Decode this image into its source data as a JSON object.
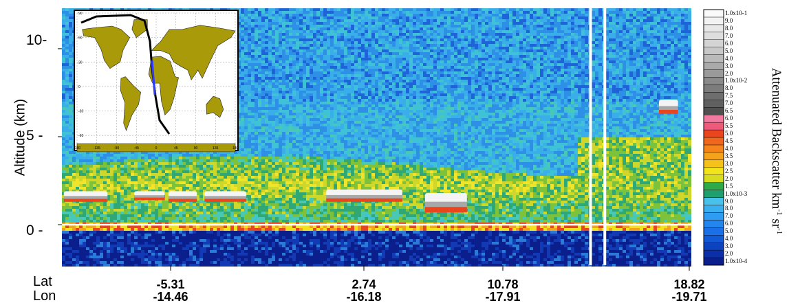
{
  "chart_data": {
    "type": "heatmap",
    "ylabel": "Altitude (km)",
    "ylim": [
      -2.3,
      12.3
    ],
    "y_ticks": [
      "10-",
      "5 -",
      "0 -"
    ],
    "y_tick_values": [
      10,
      5,
      0
    ],
    "x_row_labels": [
      "Lat",
      "Lon"
    ],
    "x_ticks": [
      {
        "lat": "-5.31",
        "lon": "-14.46"
      },
      {
        "lat": "2.74",
        "lon": "-16.18"
      },
      {
        "lat": "10.78",
        "lon": "-17.91"
      },
      {
        "lat": "18.82",
        "lon": "-19.71"
      }
    ],
    "lat_range": [
      -12.1,
      21.0
    ],
    "colorbar": {
      "title": "Attenuated Backscatter km",
      "title_sup1": "-1",
      "title_mid": " sr",
      "title_sup2": "-1",
      "labels": [
        "1.0x10-4",
        "2.0",
        "3.0",
        "4.0",
        "5.0",
        "6.0",
        "7.0",
        "8.0",
        "9.0",
        "1.0x10-3",
        "1.5",
        "2.0",
        "2.5",
        "3.0",
        "3.5",
        "4.0",
        "4.5",
        "5.0",
        "5.5",
        "6.0",
        "6.5",
        "7.0",
        "7.5",
        "8.0",
        "1.0x10-2",
        "2.0",
        "3.0",
        "4.0",
        "5.0",
        "6.0",
        "7.0",
        "8.0",
        "9.0",
        "1.0x10-1"
      ],
      "colors": [
        "#0a1e8c",
        "#0b2fa8",
        "#0e43c0",
        "#1259d6",
        "#1a70e6",
        "#2386ee",
        "#2e9cf2",
        "#3bb0f0",
        "#48c2ea",
        "#1f9e6e",
        "#2faa4a",
        "#d8dc1e",
        "#f2e41c",
        "#f5c21a",
        "#f6a31a",
        "#f5851b",
        "#f0661d",
        "#e8461e",
        "#f05a7a",
        "#f27aa0",
        "#505050",
        "#606060",
        "#6e6e6e",
        "#7c7c7c",
        "#8a8a8a",
        "#9a9a9a",
        "#aaaaaa",
        "#bababa",
        "#c8c8c8",
        "#d4d4d4",
        "#dedede",
        "#e8e8e8",
        "#f2f2f2",
        "#fafafa"
      ]
    },
    "cloud_layers": [
      {
        "lat": [
          -12.0,
          -9.7
        ],
        "base": 1.3,
        "top": 1.9
      },
      {
        "lat": [
          -8.3,
          -6.7
        ],
        "base": 1.4,
        "top": 1.9
      },
      {
        "lat": [
          -6.5,
          -5.0
        ],
        "base": 1.3,
        "top": 1.9
      },
      {
        "lat": [
          -4.6,
          -2.4
        ],
        "base": 1.3,
        "top": 1.9
      },
      {
        "lat": [
          1.8,
          5.8
        ],
        "base": 1.3,
        "top": 2.0
      },
      {
        "lat": [
          7.0,
          9.2
        ],
        "base": 0.7,
        "top": 1.8
      },
      {
        "lat": [
          19.3,
          20.3
        ],
        "base": 6.3,
        "top": 7.1
      }
    ],
    "data_gaps_lat": [
      15.7,
      16.45
    ],
    "inset_map": {
      "lon_ticks": [
        "-180",
        "-135",
        "-90",
        "-45",
        "0",
        "45",
        "90",
        "135",
        "180"
      ],
      "lat_ticks": [
        "90",
        "60",
        "30",
        "0",
        "-30",
        "-60"
      ]
    }
  }
}
